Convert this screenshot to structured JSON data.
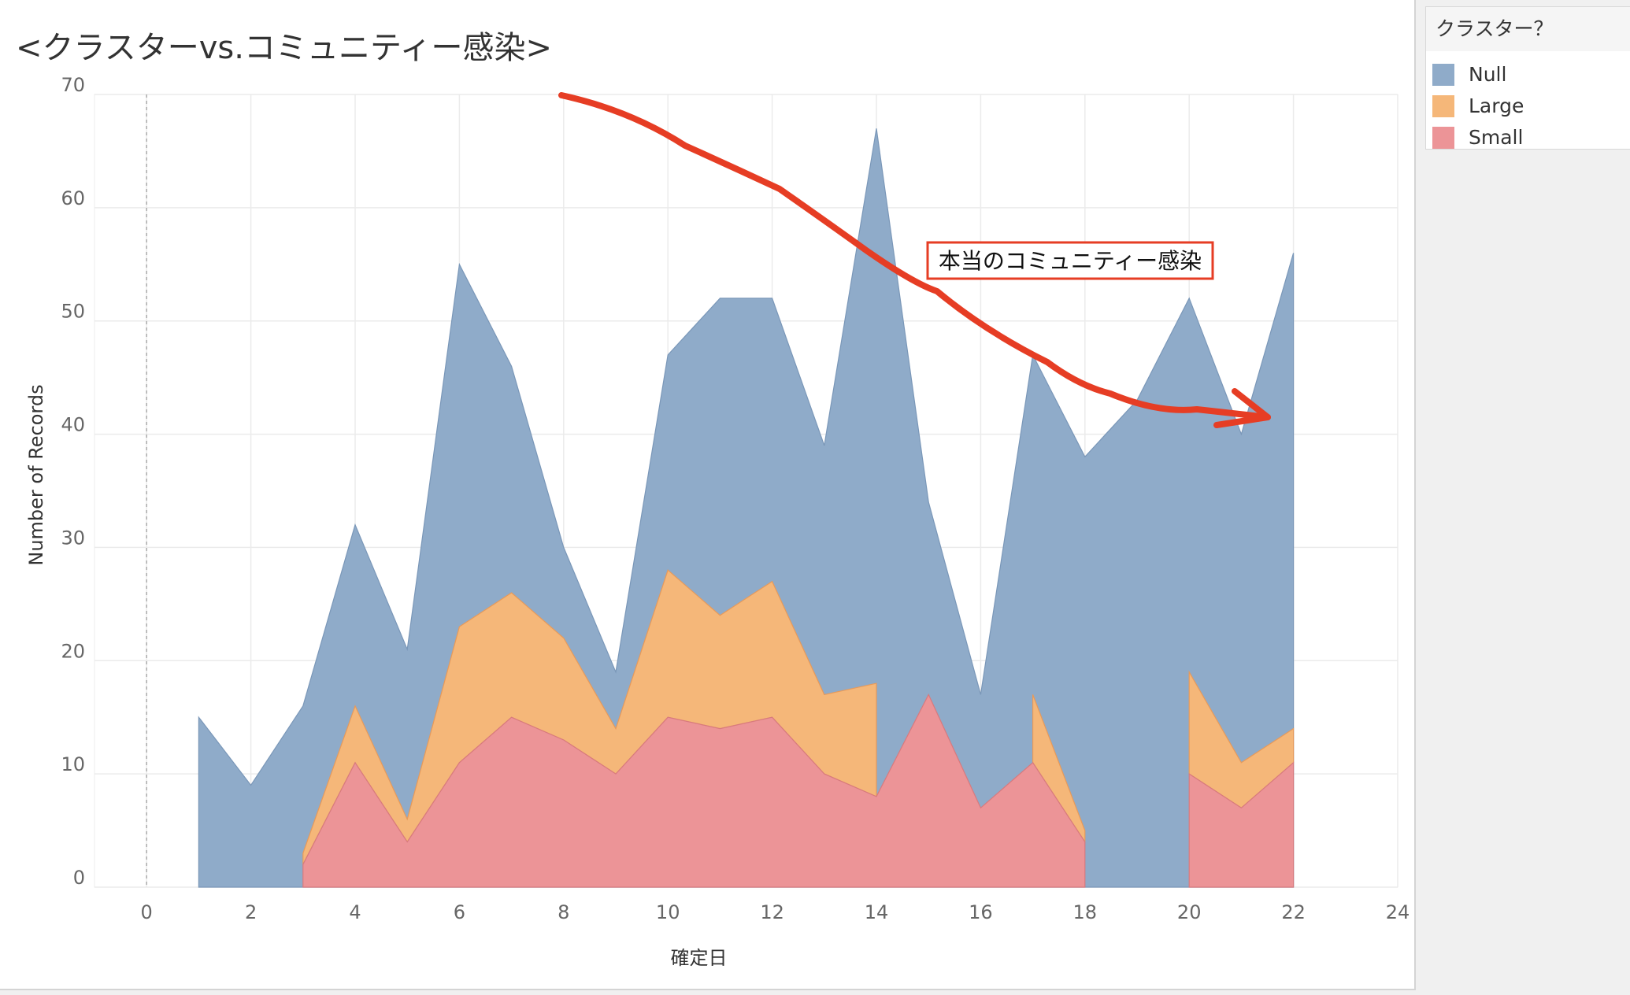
{
  "title": "<クラスターvs.コミュニティー感染>",
  "legend": {
    "title": "クラスター？",
    "items": [
      {
        "label": "Null",
        "color": "#8fabc9"
      },
      {
        "label": "Large",
        "color": "#f5b779"
      },
      {
        "label": "Small",
        "color": "#ec9497"
      }
    ]
  },
  "annotation": {
    "text": "本当のコミュニティー感染",
    "color": "#e63d24"
  },
  "chart_data": {
    "type": "area",
    "stacked": true,
    "xlabel": "確定日",
    "ylabel": "Number of Records",
    "xlim": [
      -1,
      24
    ],
    "ylim": [
      0,
      70
    ],
    "x_ticks": [
      0,
      2,
      4,
      6,
      8,
      10,
      12,
      14,
      16,
      18,
      20,
      22,
      24
    ],
    "y_ticks": [
      0,
      10,
      20,
      30,
      40,
      50,
      60,
      70
    ],
    "grid": true,
    "legend_position": "right",
    "reference_line_x": 0,
    "series": [
      {
        "name": "Small",
        "color": "#ec9497",
        "segments": [
          [
            [
              3,
              2
            ],
            [
              4,
              11
            ],
            [
              5,
              4
            ],
            [
              6,
              11
            ],
            [
              7,
              15
            ],
            [
              8,
              13
            ],
            [
              9,
              10
            ],
            [
              10,
              15
            ],
            [
              11,
              14
            ],
            [
              12,
              15
            ],
            [
              13,
              10
            ],
            [
              14,
              8
            ],
            [
              15,
              17
            ],
            [
              16,
              7
            ],
            [
              17,
              11
            ],
            [
              18,
              4
            ]
          ],
          [
            [
              20,
              10
            ],
            [
              21,
              7
            ],
            [
              22,
              11
            ]
          ]
        ]
      },
      {
        "name": "Large",
        "color": "#f5b779",
        "segments": [
          [
            [
              3,
              1
            ],
            [
              4,
              5
            ],
            [
              5,
              2
            ],
            [
              6,
              12
            ],
            [
              7,
              11
            ],
            [
              8,
              9
            ],
            [
              9,
              4
            ],
            [
              10,
              13
            ],
            [
              11,
              10
            ],
            [
              12,
              12
            ],
            [
              13,
              7
            ],
            [
              14,
              10
            ]
          ],
          [
            [
              17,
              6
            ],
            [
              18,
              1
            ]
          ],
          [
            [
              20,
              9
            ],
            [
              21,
              4
            ],
            [
              22,
              3
            ]
          ]
        ]
      },
      {
        "name": "Null",
        "color": "#8fabc9",
        "totals": [
          [
            1,
            15
          ],
          [
            2,
            9
          ],
          [
            3,
            16
          ],
          [
            4,
            32
          ],
          [
            5,
            21
          ],
          [
            6,
            55
          ],
          [
            7,
            46
          ],
          [
            8,
            30
          ],
          [
            9,
            19
          ],
          [
            10,
            47
          ],
          [
            11,
            52
          ],
          [
            12,
            52
          ],
          [
            13,
            39
          ],
          [
            14,
            67
          ],
          [
            15,
            34
          ],
          [
            16,
            17
          ],
          [
            17,
            47
          ],
          [
            18,
            38
          ],
          [
            19,
            43
          ],
          [
            20,
            52
          ],
          [
            21,
            40
          ],
          [
            22,
            56
          ]
        ]
      }
    ]
  }
}
